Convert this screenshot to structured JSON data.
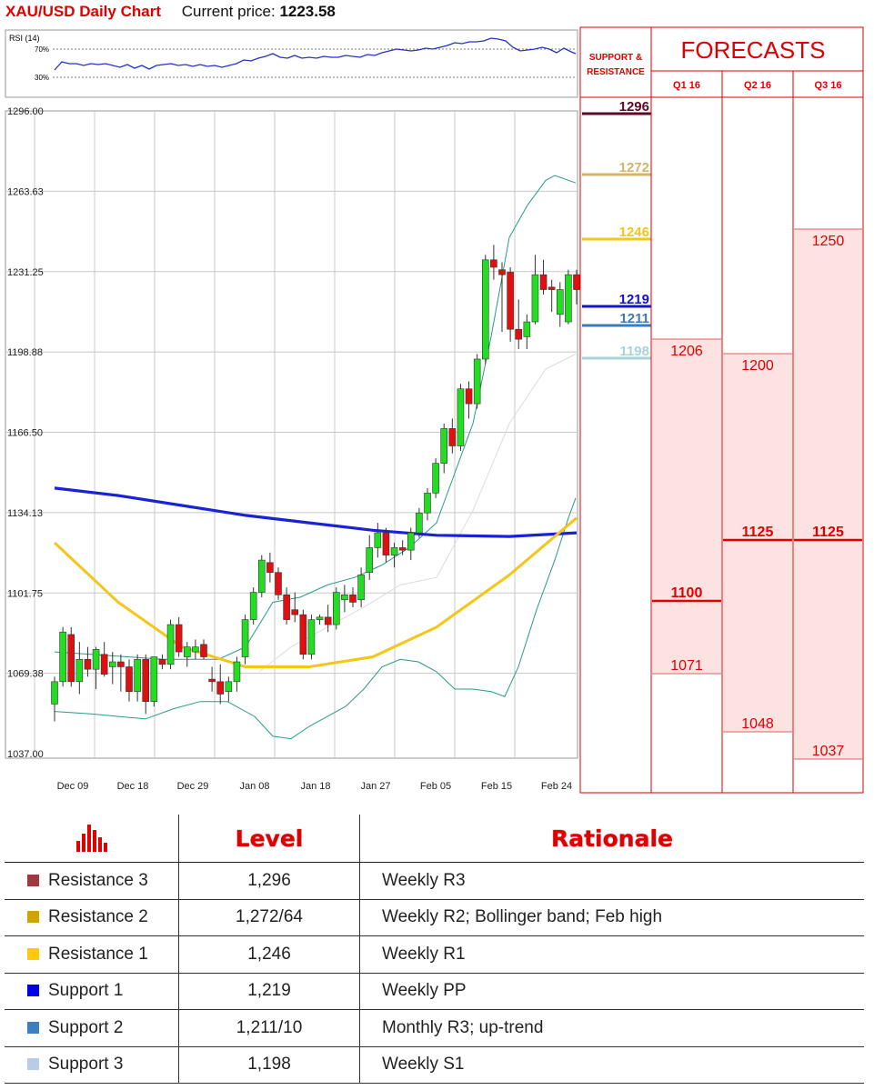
{
  "header": {
    "pair": "XAU/USD Daily Chart",
    "price_label": "Current price:",
    "price_value": "1223.58"
  },
  "chart_data": {
    "type": "candlestick",
    "title": "XAU/USD Daily Chart",
    "current_price": 1223.58,
    "y_ticks": [
      "1296.00",
      "1263.63",
      "1231.25",
      "1198.88",
      "1166.50",
      "1134.13",
      "1101.75",
      "1069.38",
      "1037.00"
    ],
    "x_ticks": [
      "Dec 09",
      "Dec 18",
      "Dec 29",
      "Jan 08",
      "Jan 18",
      "Jan 27",
      "Feb 05",
      "Feb 15",
      "Feb 24"
    ],
    "ylim": [
      1037,
      1296
    ],
    "candles": [
      [
        1057,
        1068,
        1050,
        1066
      ],
      [
        1066,
        1088,
        1064,
        1086
      ],
      [
        1085,
        1088,
        1064,
        1066
      ],
      [
        1066,
        1082,
        1061,
        1075
      ],
      [
        1075,
        1080,
        1068,
        1071
      ],
      [
        1071,
        1080,
        1063,
        1079
      ],
      [
        1077,
        1082,
        1068,
        1069
      ],
      [
        1072,
        1078,
        1065,
        1074
      ],
      [
        1074,
        1077,
        1062,
        1072
      ],
      [
        1072,
        1075,
        1058,
        1062
      ],
      [
        1062,
        1077,
        1058,
        1075
      ],
      [
        1075,
        1077,
        1053,
        1058
      ],
      [
        1058,
        1076,
        1056,
        1076
      ],
      [
        1075,
        1077,
        1071,
        1073
      ],
      [
        1073,
        1091,
        1071,
        1089
      ],
      [
        1089,
        1092,
        1076,
        1078
      ],
      [
        1076,
        1082,
        1072,
        1080
      ],
      [
        1078,
        1083,
        1075,
        1080
      ],
      [
        1081,
        1083,
        1075,
        1076
      ],
      [
        1067,
        1072,
        1062,
        1066
      ],
      [
        1066,
        1073,
        1057,
        1061
      ],
      [
        1062,
        1068,
        1058,
        1066
      ],
      [
        1066,
        1076,
        1062,
        1074
      ],
      [
        1076,
        1093,
        1073,
        1091
      ],
      [
        1091,
        1104,
        1089,
        1102
      ],
      [
        1102,
        1117,
        1100,
        1115
      ],
      [
        1114,
        1118,
        1106,
        1110
      ],
      [
        1110,
        1112,
        1099,
        1101
      ],
      [
        1101,
        1104,
        1089,
        1091
      ],
      [
        1095,
        1102,
        1090,
        1093
      ],
      [
        1093,
        1095,
        1075,
        1077
      ],
      [
        1077,
        1093,
        1075,
        1091
      ],
      [
        1091,
        1093,
        1089,
        1092
      ],
      [
        1092,
        1097,
        1086,
        1089
      ],
      [
        1089,
        1104,
        1087,
        1102
      ],
      [
        1099,
        1105,
        1094,
        1101
      ],
      [
        1101,
        1104,
        1096,
        1098
      ],
      [
        1099,
        1112,
        1096,
        1109
      ],
      [
        1110,
        1125,
        1107,
        1120
      ],
      [
        1120,
        1130,
        1116,
        1126
      ],
      [
        1126,
        1128,
        1114,
        1117
      ],
      [
        1117,
        1122,
        1112,
        1120
      ],
      [
        1120,
        1123,
        1117,
        1119
      ],
      [
        1119,
        1128,
        1115,
        1126
      ],
      [
        1126,
        1136,
        1124,
        1134
      ],
      [
        1134,
        1144,
        1131,
        1142
      ],
      [
        1142,
        1156,
        1140,
        1154
      ],
      [
        1154,
        1170,
        1150,
        1168
      ],
      [
        1168,
        1172,
        1158,
        1161
      ],
      [
        1161,
        1186,
        1159,
        1184
      ],
      [
        1184,
        1187,
        1172,
        1178
      ],
      [
        1178,
        1198,
        1176,
        1196
      ],
      [
        1196,
        1238,
        1194,
        1236
      ],
      [
        1236,
        1242,
        1228,
        1233
      ],
      [
        1232,
        1235,
        1207,
        1230
      ],
      [
        1231,
        1233,
        1203,
        1208
      ],
      [
        1208,
        1220,
        1200,
        1204
      ],
      [
        1205,
        1214,
        1200,
        1211
      ],
      [
        1211,
        1238,
        1210,
        1230
      ],
      [
        1230,
        1236,
        1222,
        1224
      ],
      [
        1225,
        1228,
        1215,
        1224
      ],
      [
        1214,
        1227,
        1209,
        1224
      ],
      [
        1211,
        1232,
        1210,
        1230
      ],
      [
        1230,
        1232,
        1218,
        1224
      ]
    ],
    "sma_100": [
      1144,
      1141,
      1137,
      1133,
      1130,
      1127,
      1125,
      1124.5,
      1126
    ],
    "sma_50": [
      1122,
      1098,
      1080,
      1072,
      1072,
      1076,
      1088,
      1109,
      1132
    ],
    "rsi": {
      "label": "RSI (14)",
      "levels": [
        "70%",
        "30%"
      ]
    },
    "support_resistance": {
      "title": "SUPPORT & RESISTANCE",
      "levels": [
        {
          "value": 1296,
          "label": "1296",
          "color": "#5c0a2a"
        },
        {
          "value": 1272,
          "label": "1272",
          "color": "#d4b46a"
        },
        {
          "value": 1246,
          "label": "1246",
          "color": "#f5c518"
        },
        {
          "value": 1219,
          "label": "1219",
          "color": "#1313c8"
        },
        {
          "value": 1211,
          "label": "1211",
          "color": "#3d7ab8"
        },
        {
          "value": 1198,
          "label": "1198",
          "color": "#a8d4d8"
        }
      ]
    },
    "forecasts": {
      "title": "FORECASTS",
      "quarters": [
        "Q1 16",
        "Q2 16",
        "Q3 16"
      ],
      "ranges": [
        {
          "high": 1206,
          "mid": 1100,
          "low": 1071,
          "high_label": "1206",
          "mid_label": "1100",
          "low_label": "1071"
        },
        {
          "high": 1200,
          "mid": 1125,
          "low": 1048,
          "high_label": "1200",
          "mid_label": "1125",
          "low_label": "1048"
        },
        {
          "high": 1250,
          "mid": 1125,
          "low": 1037,
          "high_label": "1250",
          "mid_label": "1125",
          "low_label": "1037"
        }
      ]
    }
  },
  "table": {
    "headers": {
      "level": "Level",
      "rationale": "Rationale"
    },
    "rows": [
      {
        "name": "Resistance 3",
        "color": "#9e3a3f",
        "level": "1,296",
        "rationale": "Weekly R3"
      },
      {
        "name": "Resistance 2",
        "color": "#d0a300",
        "level": "1,272/64",
        "rationale": "Weekly R2; Bollinger band; Feb high"
      },
      {
        "name": "Resistance 1",
        "color": "#ffc90e",
        "level": "1,246",
        "rationale": "Weekly R1"
      },
      {
        "name": "Support 1",
        "color": "#0000e6",
        "level": "1,219",
        "rationale": "Weekly PP"
      },
      {
        "name": "Support 2",
        "color": "#3f7fbf",
        "level": "1,211/10",
        "rationale": "Monthly R3; up-trend"
      },
      {
        "name": "Support 3",
        "color": "#b7cde6",
        "level": "1,198",
        "rationale": "Weekly S1"
      }
    ]
  }
}
